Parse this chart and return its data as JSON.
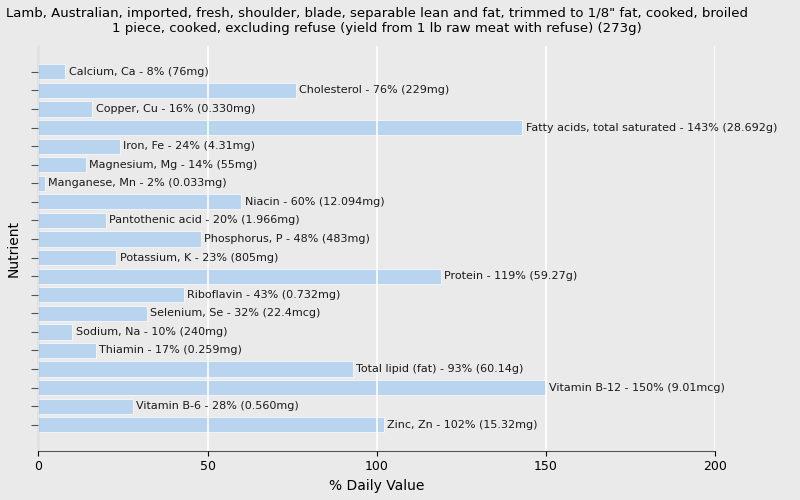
{
  "title": "Lamb, Australian, imported, fresh, shoulder, blade, separable lean and fat, trimmed to 1/8\" fat, cooked, broiled\n1 piece, cooked, excluding refuse (yield from 1 lb raw meat with refuse) (273g)",
  "xlabel": "% Daily Value",
  "ylabel": "Nutrient",
  "xlim": [
    0,
    200
  ],
  "xticks": [
    0,
    50,
    100,
    150,
    200
  ],
  "nutrients": [
    "Calcium, Ca - 8% (76mg)",
    "Cholesterol - 76% (229mg)",
    "Copper, Cu - 16% (0.330mg)",
    "Fatty acids, total saturated - 143% (28.692g)",
    "Iron, Fe - 24% (4.31mg)",
    "Magnesium, Mg - 14% (55mg)",
    "Manganese, Mn - 2% (0.033mg)",
    "Niacin - 60% (12.094mg)",
    "Pantothenic acid - 20% (1.966mg)",
    "Phosphorus, P - 48% (483mg)",
    "Potassium, K - 23% (805mg)",
    "Protein - 119% (59.27g)",
    "Riboflavin - 43% (0.732mg)",
    "Selenium, Se - 32% (22.4mcg)",
    "Sodium, Na - 10% (240mg)",
    "Thiamin - 17% (0.259mg)",
    "Total lipid (fat) - 93% (60.14g)",
    "Vitamin B-12 - 150% (9.01mcg)",
    "Vitamin B-6 - 28% (0.560mg)",
    "Zinc, Zn - 102% (15.32mg)"
  ],
  "values": [
    8,
    76,
    16,
    143,
    24,
    14,
    2,
    60,
    20,
    48,
    23,
    119,
    43,
    32,
    10,
    17,
    93,
    150,
    28,
    102
  ],
  "bar_color": "#b8d4ee",
  "bar_edge_color": "#b8d4ee",
  "background_color": "#eaeaea",
  "plot_bg_color": "#eaeaea",
  "title_fontsize": 9.5,
  "axis_label_fontsize": 10,
  "tick_fontsize": 9,
  "bar_label_fontsize": 8,
  "grid_color": "#ffffff",
  "grid_linewidth": 1.2,
  "bar_height": 0.82
}
